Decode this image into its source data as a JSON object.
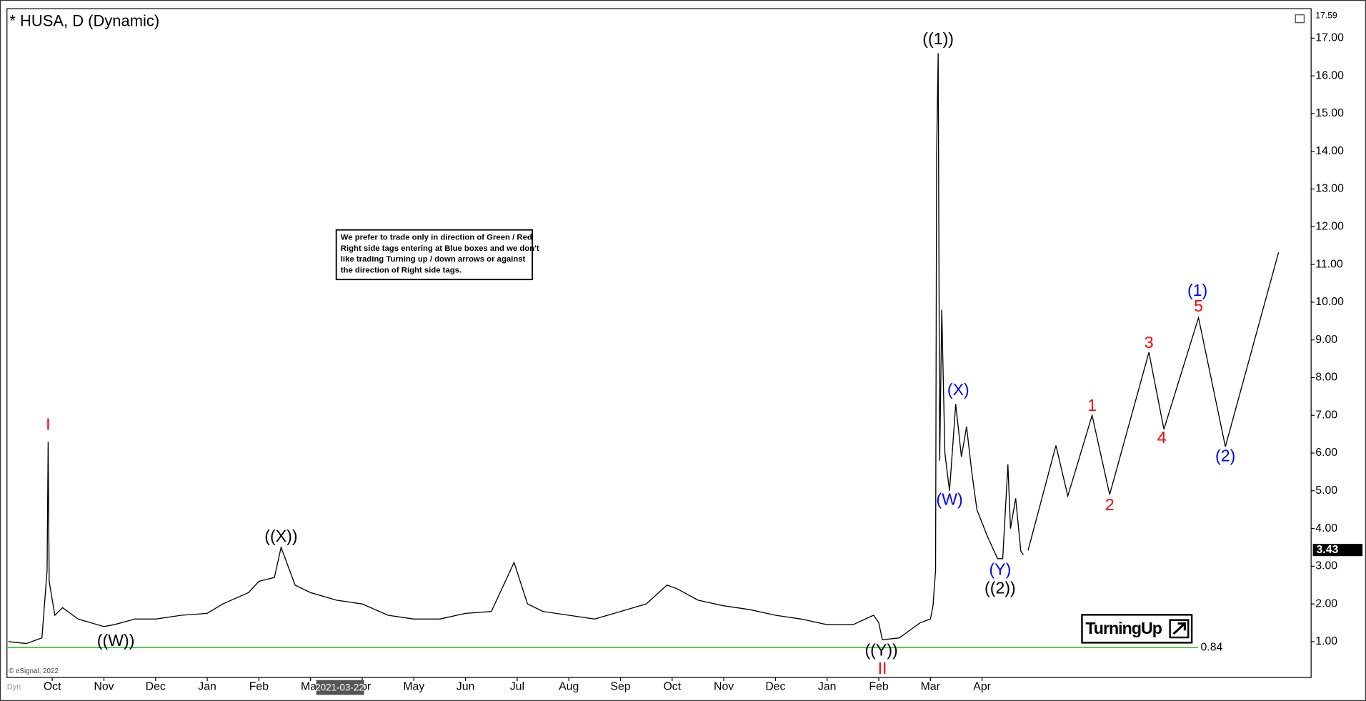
{
  "chart_data": {
    "type": "line",
    "title": "* HUSA, D (Dynamic)",
    "xlim": [
      -0.877,
      24.37
    ],
    "ylim": [
      0.05,
      17.78
    ],
    "xticks": [
      {
        "value": 0,
        "label": "Oct"
      },
      {
        "value": 1,
        "label": "Nov"
      },
      {
        "value": 2,
        "label": "Dec"
      },
      {
        "value": 3,
        "label": "Jan"
      },
      {
        "value": 4,
        "label": "Feb"
      },
      {
        "value": 5,
        "label": "Mar"
      },
      {
        "value": 6,
        "label": "Apr"
      },
      {
        "value": 7,
        "label": "May"
      },
      {
        "value": 8,
        "label": "Jun"
      },
      {
        "value": 9,
        "label": "Jul"
      },
      {
        "value": 10,
        "label": "Aug"
      },
      {
        "value": 11,
        "label": "Sep"
      },
      {
        "value": 12,
        "label": "Oct"
      },
      {
        "value": 13,
        "label": "Nov"
      },
      {
        "value": 14,
        "label": "Dec"
      },
      {
        "value": 15,
        "label": "Jan"
      },
      {
        "value": 16,
        "label": "Feb"
      },
      {
        "value": 17,
        "label": "Mar"
      },
      {
        "value": 18,
        "label": "Apr"
      }
    ],
    "yticks": [
      {
        "value": 1,
        "label": "1.00"
      },
      {
        "value": 2,
        "label": "2.00"
      },
      {
        "value": 3,
        "label": "3.00"
      },
      {
        "value": 4,
        "label": "4.00"
      },
      {
        "value": 5,
        "label": "5.00"
      },
      {
        "value": 6,
        "label": "6.00"
      },
      {
        "value": 7,
        "label": "7.00"
      },
      {
        "value": 8,
        "label": "8.00"
      },
      {
        "value": 9,
        "label": "9.00"
      },
      {
        "value": 10,
        "label": "10.00"
      },
      {
        "value": 11,
        "label": "11.00"
      },
      {
        "value": 12,
        "label": "12.00"
      },
      {
        "value": 13,
        "label": "13.00"
      },
      {
        "value": 14,
        "label": "14.00"
      },
      {
        "value": 15,
        "label": "15.00"
      },
      {
        "value": 16,
        "label": "16.00"
      },
      {
        "value": 17,
        "label": "17.00"
      }
    ],
    "series": [
      {
        "color": "#000000",
        "x": [
          -0.85,
          -0.5,
          -0.2,
          -0.1,
          -0.08,
          -0.06,
          0.05,
          0.2,
          0.5,
          1.0,
          1.2,
          1.6,
          2.0,
          2.5,
          3.0,
          3.3,
          3.8,
          4.0,
          4.3,
          4.43,
          4.7,
          5.0,
          5.5,
          6.0,
          6.5,
          7.0,
          7.5,
          8.0,
          8.5,
          8.94,
          9.2,
          9.5,
          10.0,
          10.5,
          11.0,
          11.5,
          11.9,
          12.1,
          12.5,
          13.0,
          13.5,
          14.0,
          14.5,
          15.0,
          15.5,
          15.9,
          16.0,
          16.07,
          16.4,
          16.6,
          16.8,
          17.0,
          17.05,
          17.1,
          17.12,
          17.15,
          17.18,
          17.22,
          17.28,
          17.37,
          17.49,
          17.6,
          17.7,
          17.8,
          17.9,
          18.1,
          18.3,
          18.4,
          18.5,
          18.55,
          18.65,
          18.75,
          18.8
        ],
        "values": [
          1.0,
          0.95,
          1.1,
          2.9,
          6.3,
          2.6,
          1.7,
          1.9,
          1.6,
          1.4,
          1.45,
          1.6,
          1.6,
          1.7,
          1.75,
          2.0,
          2.3,
          2.6,
          2.7,
          3.5,
          2.5,
          2.3,
          2.1,
          2.0,
          1.7,
          1.6,
          1.6,
          1.75,
          1.8,
          3.1,
          2.0,
          1.8,
          1.7,
          1.6,
          1.8,
          2.0,
          2.5,
          2.4,
          2.1,
          1.95,
          1.85,
          1.7,
          1.6,
          1.45,
          1.45,
          1.7,
          1.5,
          1.05,
          1.1,
          1.3,
          1.5,
          1.6,
          1.95,
          2.9,
          13.9,
          16.6,
          5.8,
          9.8,
          6.0,
          5.0,
          7.3,
          5.9,
          6.7,
          5.5,
          4.5,
          3.8,
          3.2,
          3.2,
          5.7,
          4.0,
          4.8,
          3.4,
          3.3
        ]
      },
      {
        "color": "#000000",
        "x": [
          18.89,
          19.43,
          19.66,
          20.13,
          20.47,
          21.23,
          21.52,
          22.19,
          22.71,
          23.74
        ],
        "values": [
          3.42,
          6.2,
          4.86,
          7.0,
          4.9,
          8.67,
          6.63,
          9.59,
          6.17,
          11.32
        ]
      }
    ],
    "annotations": [
      {
        "text": "I",
        "x": -0.08,
        "y": 6.73,
        "color": "#ff0000"
      },
      {
        "text": "((W))",
        "x": 1.23,
        "y": 1.0,
        "color": "#000000"
      },
      {
        "text": "((X))",
        "x": 4.43,
        "y": 3.77,
        "color": "#000000"
      },
      {
        "text": "((Y))",
        "x": 16.05,
        "y": 0.75,
        "color": "#000000"
      },
      {
        "text": "II",
        "x": 16.07,
        "y": 0.26,
        "color": "#ff0000"
      },
      {
        "text": "((1))",
        "x": 17.15,
        "y": 16.95,
        "color": "#000000"
      },
      {
        "text": "(W)",
        "x": 17.37,
        "y": 4.74,
        "color": "#0000ff"
      },
      {
        "text": "(X)",
        "x": 17.54,
        "y": 7.65,
        "color": "#0000ff"
      },
      {
        "text": "(Y)",
        "x": 18.35,
        "y": 2.89,
        "color": "#0000ff"
      },
      {
        "text": "((2))",
        "x": 18.35,
        "y": 2.39,
        "color": "#000000"
      },
      {
        "text": "1",
        "x": 20.13,
        "y": 7.23,
        "color": "#ff0000"
      },
      {
        "text": "2",
        "x": 20.47,
        "y": 4.6,
        "color": "#ff0000"
      },
      {
        "text": "3",
        "x": 21.23,
        "y": 8.9,
        "color": "#ff0000"
      },
      {
        "text": "4",
        "x": 21.48,
        "y": 6.38,
        "color": "#ff0000"
      },
      {
        "text": "5",
        "x": 22.19,
        "y": 9.87,
        "color": "#ff0000"
      },
      {
        "text": "(1)",
        "x": 22.17,
        "y": 10.28,
        "color": "#0000ff"
      },
      {
        "text": "(2)",
        "x": 22.71,
        "y": 5.9,
        "color": "#0000ff"
      }
    ],
    "support": {
      "value": 0.84,
      "label": "0.84",
      "color": "#00cc00",
      "x_end": 22.18
    },
    "last_price": {
      "value": 3.43,
      "label": "3.43"
    },
    "top_price": {
      "value": 17.59,
      "label": "17.59"
    },
    "note": [
      "We prefer to trade only in direction of Green / Red",
      "Right side tags entering at Blue boxes and we don't",
      "like trading Turning up / down arrows or against",
      "the direction of Right side tags."
    ],
    "cursor_date": "2021-03-22",
    "copyright": "© eSignal, 2022",
    "logo": "TurningUp",
    "corner_tag": "Dyn"
  }
}
